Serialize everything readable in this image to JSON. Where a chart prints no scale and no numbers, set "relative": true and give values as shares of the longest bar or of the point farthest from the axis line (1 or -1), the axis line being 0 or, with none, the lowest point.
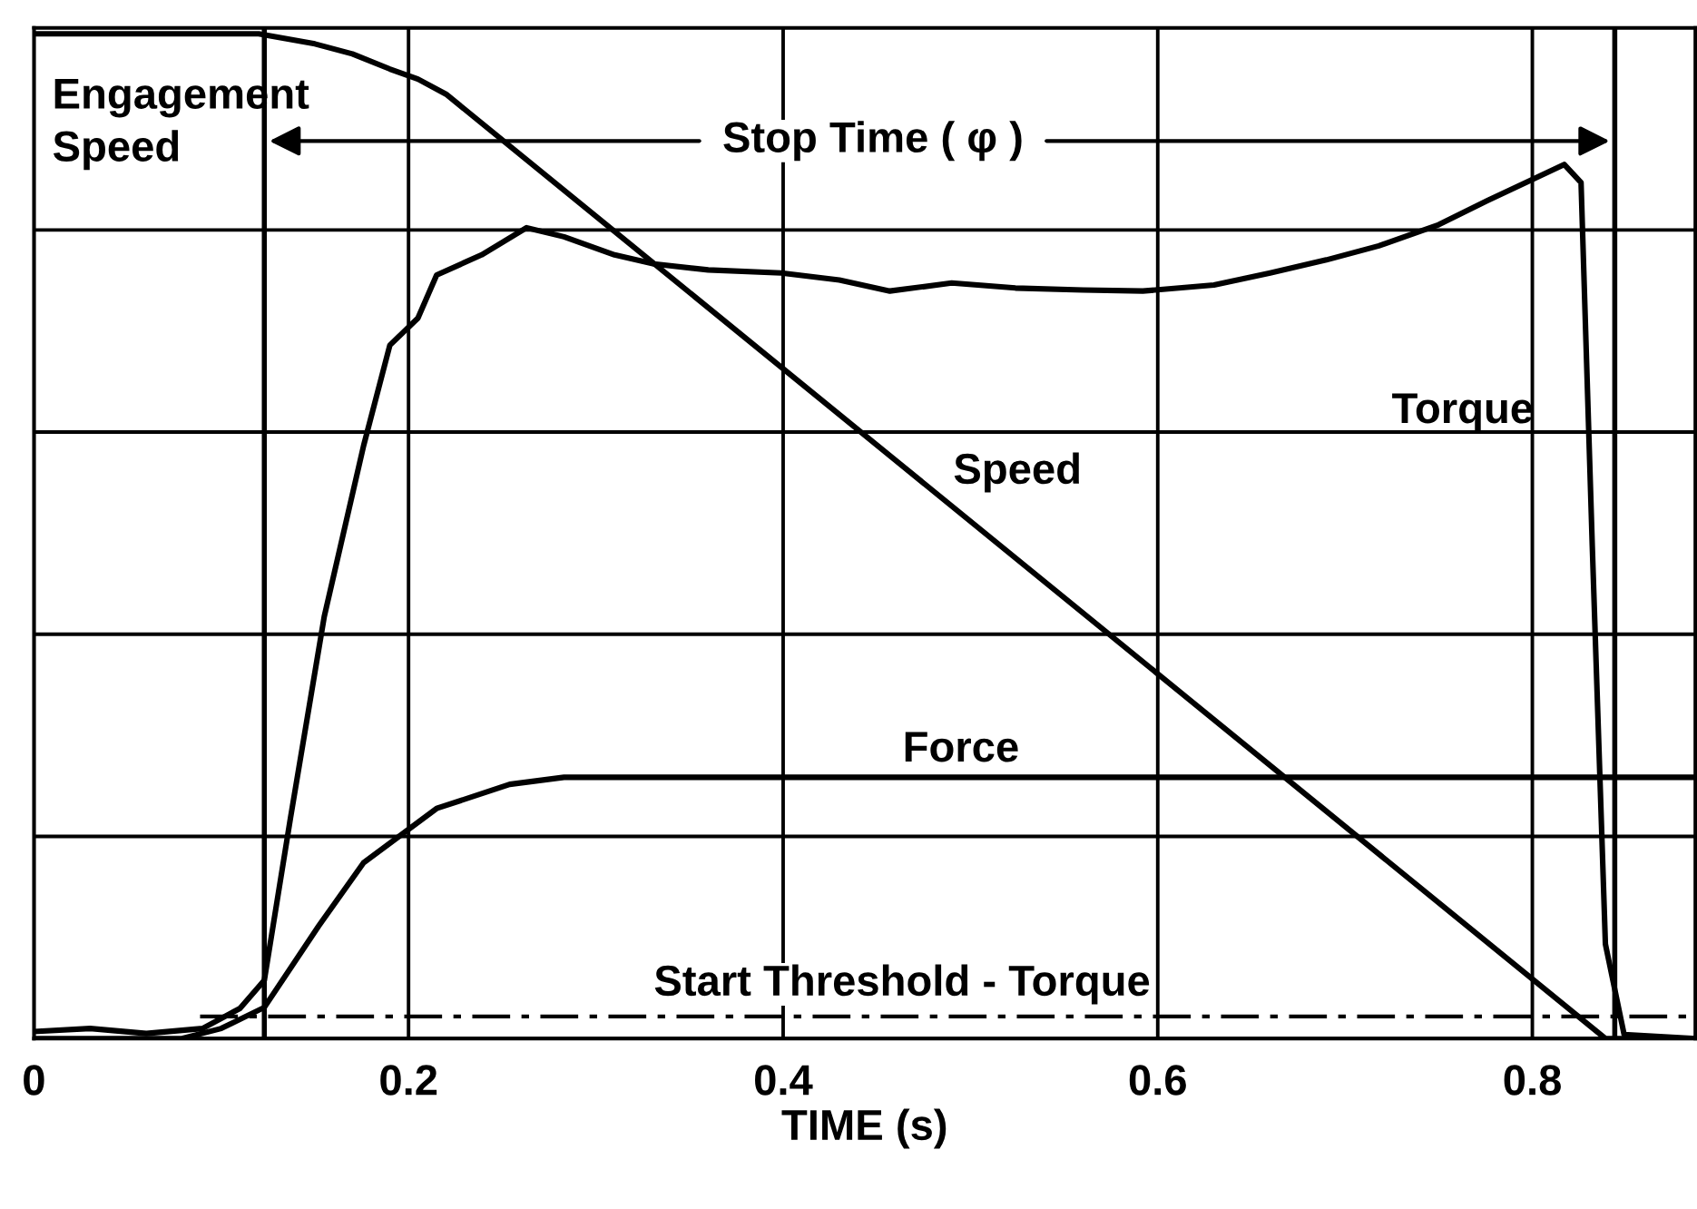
{
  "chart_data": {
    "type": "line",
    "relative": true,
    "xlabel": "TIME (s)",
    "xlim": [
      0,
      0.887
    ],
    "xticks": [
      0,
      0.2,
      0.4,
      0.6,
      0.8
    ],
    "tick_labels": "x",
    "grid": true,
    "legend": false,
    "marker": "none",
    "line_style": "solid",
    "series": [
      {
        "color": "#000000",
        "x": [
          0,
          0.12,
          0.15,
          0.17,
          0.19,
          0.205,
          0.22,
          0.839,
          0.887
        ],
        "values": [
          1.0,
          1.0,
          0.99,
          0.98,
          0.965,
          0.955,
          0.94,
          0,
          0
        ]
      },
      {
        "color": "#000000",
        "x": [
          0,
          0.03,
          0.06,
          0.09,
          0.11,
          0.123,
          0.137,
          0.155,
          0.176,
          0.19,
          0.205,
          0.215,
          0.239,
          0.263,
          0.283,
          0.31,
          0.331,
          0.36,
          0.399,
          0.43,
          0.457,
          0.49,
          0.524,
          0.56,
          0.592,
          0.63,
          0.66,
          0.69,
          0.718,
          0.75,
          0.776,
          0.8,
          0.817,
          0.826,
          0.832,
          0.839,
          0.849,
          0.887
        ],
        "values": [
          0.007,
          0.01,
          0.005,
          0.01,
          0.03,
          0.058,
          0.22,
          0.42,
          0.59,
          0.69,
          0.717,
          0.76,
          0.78,
          0.807,
          0.798,
          0.78,
          0.771,
          0.765,
          0.762,
          0.755,
          0.744,
          0.752,
          0.747,
          0.745,
          0.744,
          0.75,
          0.762,
          0.775,
          0.789,
          0.81,
          0.834,
          0.855,
          0.87,
          0.852,
          0.49,
          0.094,
          0.004,
          0
        ]
      },
      {
        "color": "#000000",
        "x": [
          0,
          0.079,
          0.1,
          0.123,
          0.152,
          0.176,
          0.215,
          0.254,
          0.283,
          0.887
        ],
        "values": [
          0,
          0,
          0.01,
          0.031,
          0.112,
          0.175,
          0.229,
          0.253,
          0.26,
          0.26
        ]
      }
    ],
    "ref_lines": [
      {
        "axis": "x",
        "value": 0.123,
        "color": "#000000",
        "line_style": "solid"
      },
      {
        "axis": "x",
        "value": 0.844,
        "color": "#000000",
        "line_style": "solid"
      },
      {
        "axis": "y",
        "value": 0.022,
        "label": "Start Threshold - Torque",
        "color": "#000000",
        "line_style": "dashdot"
      }
    ],
    "annotations": [
      "Engagement\nSpeed",
      "Stop Time ( φ )",
      "Speed",
      "Force",
      "Torque"
    ]
  }
}
